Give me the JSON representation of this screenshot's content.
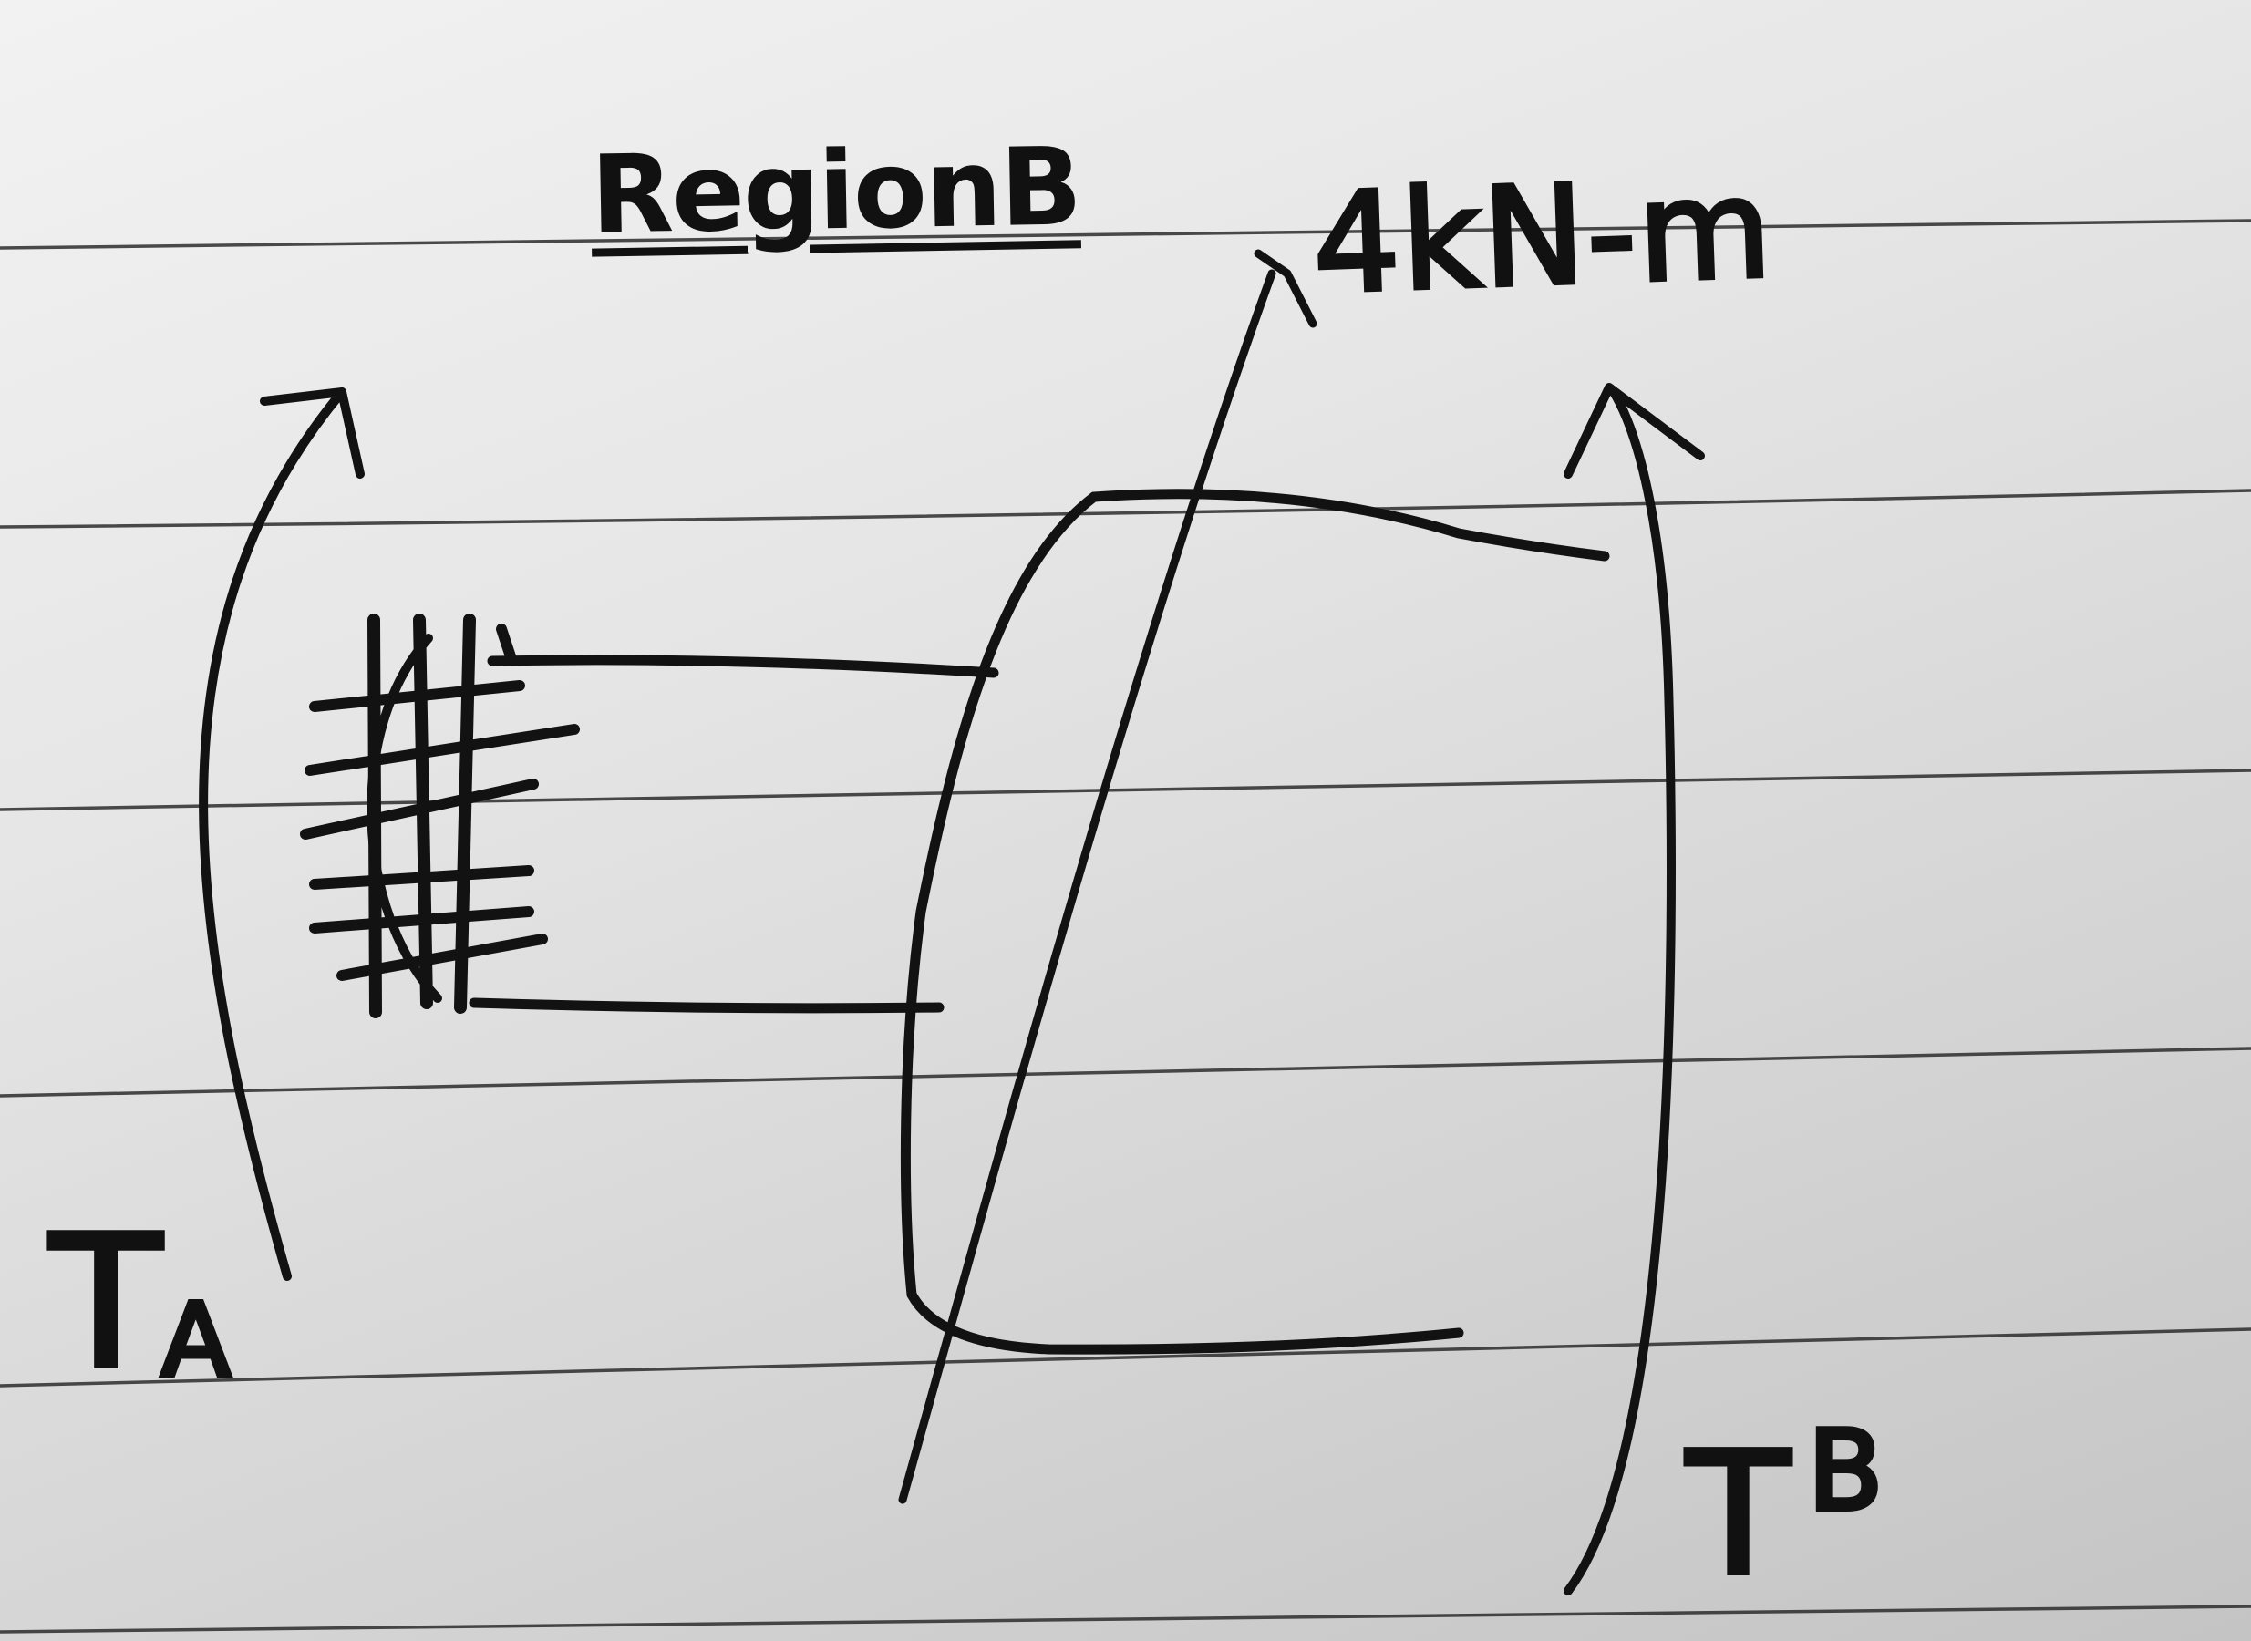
{
  "labels": {
    "region": "RegionB",
    "torque": "4kN-m",
    "torque_a_main": "T",
    "torque_a_sub": "A",
    "torque_b_main": "T",
    "torque_b_sup": "B"
  }
}
